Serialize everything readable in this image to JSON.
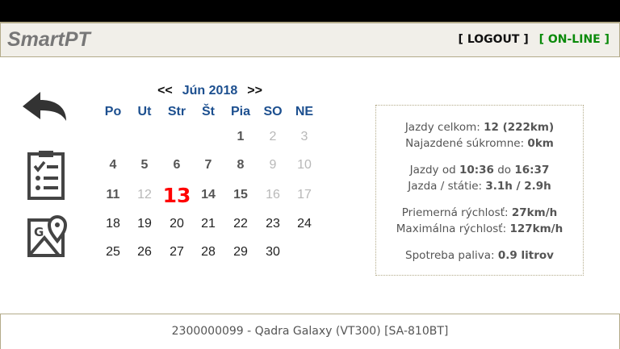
{
  "header": {
    "logo": "SmartPT",
    "logout": "[ LOGOUT ]",
    "status": "[ ON-LINE ]",
    "status_color": "#0a8a0a"
  },
  "sidebar": {
    "icons": [
      "back-arrow-icon",
      "checklist-icon",
      "map-icon"
    ]
  },
  "calendar": {
    "prev": "<<",
    "next": ">>",
    "month": "Jún 2018",
    "weekdays": [
      "Po",
      "Ut",
      "Str",
      "Št",
      "Pia",
      "SO",
      "NE"
    ],
    "today": 13,
    "days": [
      {
        "d": "1",
        "s": "trip"
      },
      {
        "d": "2",
        "s": "none"
      },
      {
        "d": "3",
        "s": "none"
      },
      {
        "d": "4",
        "s": "trip"
      },
      {
        "d": "5",
        "s": "trip"
      },
      {
        "d": "6",
        "s": "trip"
      },
      {
        "d": "7",
        "s": "trip"
      },
      {
        "d": "8",
        "s": "trip"
      },
      {
        "d": "9",
        "s": "none"
      },
      {
        "d": "10",
        "s": "none"
      },
      {
        "d": "11",
        "s": "trip"
      },
      {
        "d": "12",
        "s": "none"
      },
      {
        "d": "13",
        "s": "today"
      },
      {
        "d": "14",
        "s": "trip"
      },
      {
        "d": "15",
        "s": "trip"
      },
      {
        "d": "16",
        "s": "none"
      },
      {
        "d": "17",
        "s": "none"
      },
      {
        "d": "18",
        "s": "future"
      },
      {
        "d": "19",
        "s": "future"
      },
      {
        "d": "20",
        "s": "future"
      },
      {
        "d": "21",
        "s": "future"
      },
      {
        "d": "22",
        "s": "future"
      },
      {
        "d": "23",
        "s": "future"
      },
      {
        "d": "24",
        "s": "future"
      },
      {
        "d": "25",
        "s": "future"
      },
      {
        "d": "26",
        "s": "future"
      },
      {
        "d": "27",
        "s": "future"
      },
      {
        "d": "28",
        "s": "future"
      },
      {
        "d": "29",
        "s": "future"
      },
      {
        "d": "30",
        "s": "future"
      }
    ]
  },
  "stats": {
    "total_label": "Jazdy celkom: ",
    "total_value": "12 (222km)",
    "private_label": "Najazdené súkromne: ",
    "private_value": "0km",
    "from_label": "Jazdy od ",
    "from_value": "10:36",
    "to_label": " do ",
    "to_value": "16:37",
    "drive_label": "Jazda / státie: ",
    "drive_value": "3.1h / 2.9h",
    "avg_label": "Priemerná rýchlosť: ",
    "avg_value": "27km/h",
    "max_label": "Maximálna rýchlosť: ",
    "max_value": "127km/h",
    "fuel_label": "Spotreba paliva: ",
    "fuel_value": "0.9 litrov"
  },
  "footer": {
    "device": "2300000099 - Qadra Galaxy (VT300) [SA-810BT]"
  }
}
